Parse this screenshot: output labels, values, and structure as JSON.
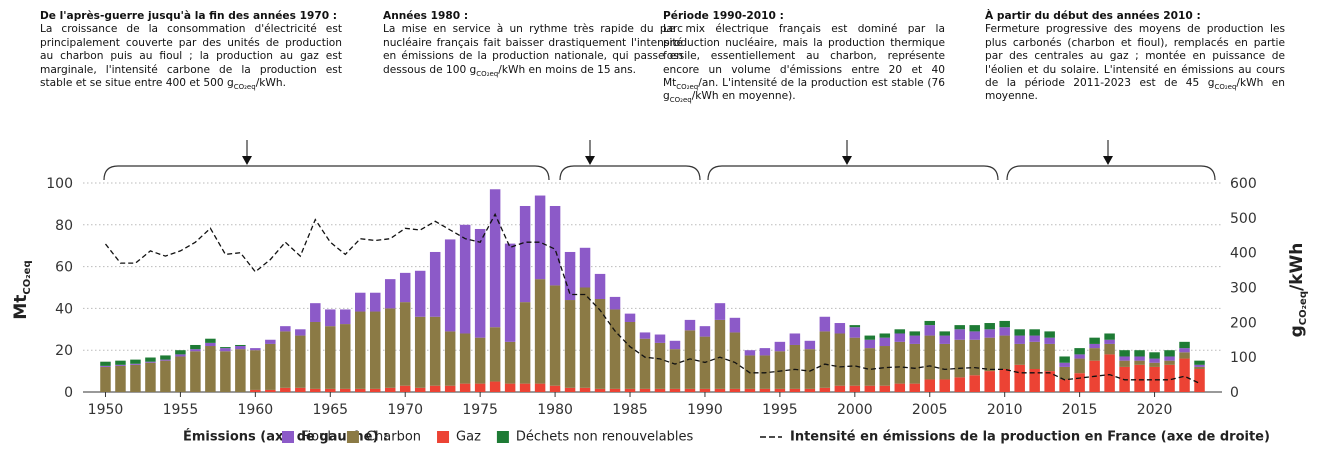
{
  "annotations": [
    {
      "title": "De l'après-guerre jusqu'à la fin des années 1970 :",
      "body": [
        "La croissance de la consommation d'électricité est principalement couverte par des unités de production au charbon puis au fioul ; la production au gaz est marginale, l'intensité carbone de la production est stable et se situe entre 400 et 500 g",
        {
          "sub": "CO₂eq"
        },
        "/kWh."
      ]
    },
    {
      "title": "Années 1980 :",
      "body": [
        "La mise en service à un rythme très rapide du parc nucléaire français fait baisser drastiquement l'intensité en émissions de la production nationale, qui passe en dessous de 100 g",
        {
          "sub": "CO₂eq"
        },
        "/kWh en moins de 15 ans."
      ]
    },
    {
      "title": "Période 1990-2010 :",
      "body": [
        "Le mix électrique français est dominé par la production nucléaire, mais la production thermique fossile, essentiellement au charbon, représente encore un volume d'émissions entre 20 et 40 Mt",
        {
          "sub": "CO₂eq"
        },
        "/an. L'intensité de la production est stable (76 g",
        {
          "sub": "CO₂eq"
        },
        "/kWh en moyenne)."
      ]
    },
    {
      "title": "À partir du début des années 2010 :",
      "body": [
        "Fermeture progressive des moyens de production les plus carbonés (charbon et fioul), remplacés en partie par des centrales au gaz ; montée en puissance de l'éolien et du solaire. L'intensité en émissions au cours de la période 2011-2023 est de 45 g",
        {
          "sub": "CO₂eq"
        },
        "/kWh en moyenne."
      ]
    }
  ],
  "chart_data": {
    "type": "bar",
    "stacked": true,
    "y_label": {
      "text": "Mt",
      "sub": "CO₂eq"
    },
    "y2_label": {
      "text": "g",
      "sub": "CO₂eq",
      "suffix": "/kWh"
    },
    "legend_title": "Émissions (axe de gauche) :",
    "x": [
      1950,
      1951,
      1952,
      1953,
      1954,
      1955,
      1956,
      1957,
      1958,
      1959,
      1960,
      1961,
      1962,
      1963,
      1964,
      1965,
      1966,
      1967,
      1968,
      1969,
      1970,
      1971,
      1972,
      1973,
      1974,
      1975,
      1976,
      1977,
      1978,
      1979,
      1980,
      1981,
      1982,
      1983,
      1984,
      1985,
      1986,
      1987,
      1988,
      1989,
      1990,
      1991,
      1992,
      1993,
      1994,
      1995,
      1996,
      1997,
      1998,
      1999,
      2000,
      2001,
      2002,
      2003,
      2004,
      2005,
      2006,
      2007,
      2008,
      2009,
      2010,
      2011,
      2012,
      2013,
      2014,
      2015,
      2016,
      2017,
      2018,
      2019,
      2020,
      2021,
      2022,
      2023
    ],
    "xlim": [
      1948.5,
      2024.5
    ],
    "xticks": [
      1950,
      1955,
      1960,
      1965,
      1970,
      1975,
      1980,
      1985,
      1990,
      1995,
      2000,
      2005,
      2010,
      2015,
      2020
    ],
    "ylim": [
      0,
      100
    ],
    "yticks": [
      0,
      20,
      40,
      60,
      80,
      100
    ],
    "y2lim": [
      0,
      600
    ],
    "y2ticks": [
      0,
      100,
      200,
      300,
      400,
      500,
      600
    ],
    "grid": true,
    "series": [
      {
        "name": "Fioul",
        "color": "#8c5ac8",
        "values": [
          0.5,
          0.5,
          0.5,
          0.5,
          0.5,
          1,
          1,
          1.5,
          1.5,
          1.5,
          1,
          2,
          2.5,
          3,
          9,
          8,
          7,
          9,
          9,
          14,
          14,
          22,
          31,
          44,
          52,
          52,
          66,
          47,
          46,
          40,
          38,
          23,
          19,
          12,
          6,
          4,
          3,
          4,
          4,
          5,
          5,
          8,
          7,
          2.5,
          3.5,
          4.5,
          5.5,
          4,
          7,
          5,
          5,
          4,
          4,
          4,
          4,
          5,
          4,
          5,
          4,
          4,
          4,
          4,
          3,
          3,
          2,
          2,
          2,
          2,
          2,
          2,
          2,
          2,
          2,
          1
        ]
      },
      {
        "name": "Charbon",
        "color": "#8b7a45",
        "values": [
          12,
          12.5,
          13,
          14,
          15,
          17,
          19.5,
          22,
          19.5,
          20.5,
          19,
          22,
          27,
          25,
          32,
          30,
          31,
          37,
          37,
          38,
          40,
          34,
          33,
          26,
          24,
          22,
          26,
          20,
          39,
          50,
          48,
          42,
          48,
          43,
          38,
          32,
          24,
          22,
          19,
          28,
          25,
          33,
          27,
          16,
          16,
          18,
          21,
          19,
          27,
          25,
          23,
          18,
          19,
          20,
          19,
          21,
          17,
          18,
          17,
          16,
          16,
          10,
          13,
          13,
          6,
          7,
          6,
          5,
          3,
          2,
          2,
          2,
          3,
          1
        ]
      },
      {
        "name": "Gaz",
        "color": "#ec4334",
        "values": [
          0,
          0,
          0,
          0,
          0,
          0,
          0,
          0,
          0,
          0,
          1,
          1,
          2,
          2,
          1.5,
          1.5,
          1.5,
          1.5,
          1.5,
          2,
          3,
          2,
          3,
          3,
          4,
          4,
          5,
          4,
          4,
          4,
          3,
          2,
          2,
          1.5,
          1.5,
          1.5,
          1.5,
          1.5,
          1.5,
          1.5,
          1.5,
          1.5,
          1.5,
          1.5,
          1.5,
          1.5,
          1.5,
          1.5,
          2,
          3,
          3,
          3,
          3,
          4,
          4,
          6,
          6,
          7,
          8,
          10,
          11,
          13,
          11,
          10,
          6,
          9,
          15,
          18,
          12,
          13,
          12,
          13,
          16,
          11
        ]
      },
      {
        "name": "Déchets non renouvelables",
        "color": "#1e7b35",
        "values": [
          2,
          2,
          2,
          2,
          2,
          2,
          2,
          2,
          0.5,
          0.5,
          0,
          0,
          0,
          0,
          0,
          0,
          0,
          0,
          0,
          0,
          0,
          0,
          0,
          0,
          0,
          0,
          0,
          0,
          0,
          0,
          0,
          0,
          0,
          0,
          0,
          0,
          0,
          0,
          0,
          0,
          0,
          0,
          0,
          0,
          0,
          0,
          0,
          0,
          0,
          0,
          1,
          2,
          2,
          2,
          2,
          2,
          2,
          2,
          3,
          3,
          3,
          3,
          3,
          3,
          3,
          3,
          3,
          3,
          3,
          3,
          3,
          3,
          3,
          2
        ]
      },
      {
        "name": "Intensité en émissions de la production en France (axe de droite)",
        "type": "line",
        "axis": "y2",
        "color": "#111111",
        "dashed": true,
        "values": [
          425,
          370,
          370,
          405,
          390,
          405,
          430,
          470,
          395,
          400,
          345,
          380,
          430,
          390,
          495,
          430,
          395,
          440,
          435,
          440,
          470,
          465,
          490,
          465,
          440,
          430,
          510,
          415,
          430,
          430,
          410,
          280,
          280,
          235,
          175,
          130,
          100,
          95,
          80,
          95,
          85,
          100,
          85,
          55,
          55,
          60,
          65,
          60,
          80,
          72,
          75,
          65,
          70,
          72,
          68,
          75,
          65,
          68,
          70,
          65,
          65,
          55,
          55,
          55,
          35,
          40,
          45,
          50,
          35,
          35,
          35,
          35,
          45,
          25
        ]
      }
    ]
  }
}
